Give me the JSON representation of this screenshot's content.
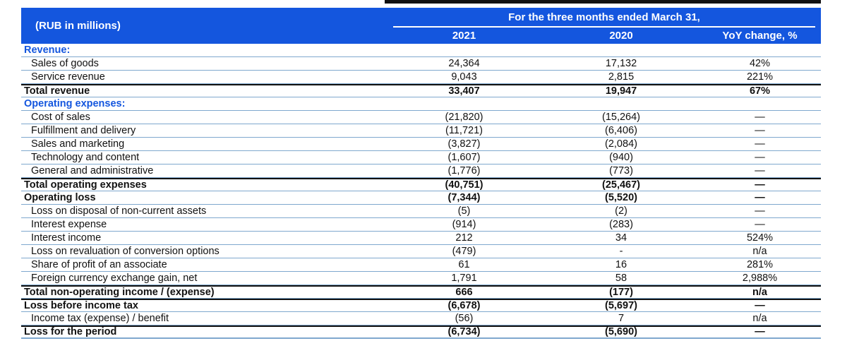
{
  "title": "Income statement table",
  "units_label": "(RUB in millions)",
  "header": {
    "span_title": "For the three months ended March 31,",
    "columns": [
      "2021",
      "2020",
      "YoY change, %"
    ]
  },
  "colors": {
    "header_blue": "#1456DE",
    "row_line_blue": "#7FA8CE",
    "rule_black": "#111111",
    "header_text": "#FFFFFF",
    "section_text_blue": "#1456DE"
  },
  "rows": [
    {
      "label": "Revenue:",
      "v2021": "",
      "v2020": "",
      "yoy": "",
      "style": "section"
    },
    {
      "label": "Sales of goods",
      "v2021": "24,364",
      "v2020": "17,132",
      "yoy": "42%",
      "style": "normal"
    },
    {
      "label": "Service revenue",
      "v2021": "9,043",
      "v2020": "2,815",
      "yoy": "221%",
      "style": "normal"
    },
    {
      "label": "Total revenue",
      "v2021": "33,407",
      "v2020": "19,947",
      "yoy": "67%",
      "style": "total"
    },
    {
      "label": "Operating expenses:",
      "v2021": "",
      "v2020": "",
      "yoy": "",
      "style": "section"
    },
    {
      "label": "Cost of sales",
      "v2021": "(21,820)",
      "v2020": "(15,264)",
      "yoy": "—",
      "style": "normal"
    },
    {
      "label": "Fulfillment and delivery",
      "v2021": "(11,721)",
      "v2020": "(6,406)",
      "yoy": "—",
      "style": "normal"
    },
    {
      "label": "Sales and marketing",
      "v2021": "(3,827)",
      "v2020": "(2,084)",
      "yoy": "—",
      "style": "normal"
    },
    {
      "label": "Technology and content",
      "v2021": "(1,607)",
      "v2020": "(940)",
      "yoy": "—",
      "style": "normal"
    },
    {
      "label": "General and administrative",
      "v2021": "(1,776)",
      "v2020": "(773)",
      "yoy": "—",
      "style": "normal"
    },
    {
      "label": "Total operating expenses",
      "v2021": "(40,751)",
      "v2020": "(25,467)",
      "yoy": "—",
      "style": "total"
    },
    {
      "label": "Operating loss",
      "v2021": "(7,344)",
      "v2020": "(5,520)",
      "yoy": "—",
      "style": "bold"
    },
    {
      "label": "Loss on disposal of non-current assets",
      "v2021": "(5)",
      "v2020": "(2)",
      "yoy": "—",
      "style": "normal"
    },
    {
      "label": "Interest expense",
      "v2021": "(914)",
      "v2020": "(283)",
      "yoy": "—",
      "style": "normal"
    },
    {
      "label": "Interest income",
      "v2021": "212",
      "v2020": "34",
      "yoy": "524%",
      "style": "normal"
    },
    {
      "label": "Loss on revaluation of conversion options",
      "v2021": "(479)",
      "v2020": "-",
      "yoy": "n/a",
      "style": "normal"
    },
    {
      "label": "Share of profit of an associate",
      "v2021": "61",
      "v2020": "16",
      "yoy": "281%",
      "style": "normal"
    },
    {
      "label": "Foreign currency exchange gain, net",
      "v2021": "1,791",
      "v2020": "58",
      "yoy": "2,988%",
      "style": "normal"
    },
    {
      "label": "Total non-operating income / (expense)",
      "v2021": "666",
      "v2020": "(177)",
      "yoy": "n/a",
      "style": "total"
    },
    {
      "label": "Loss before income tax",
      "v2021": "(6,678)",
      "v2020": "(5,697)",
      "yoy": "—",
      "style": "total"
    },
    {
      "label": "Income tax (expense) / benefit",
      "v2021": "(56)",
      "v2020": "7",
      "yoy": "n/a",
      "style": "normal"
    },
    {
      "label": "Loss for the period",
      "v2021": "(6,734)",
      "v2020": "(5,690)",
      "yoy": "—",
      "style": "total last"
    }
  ]
}
